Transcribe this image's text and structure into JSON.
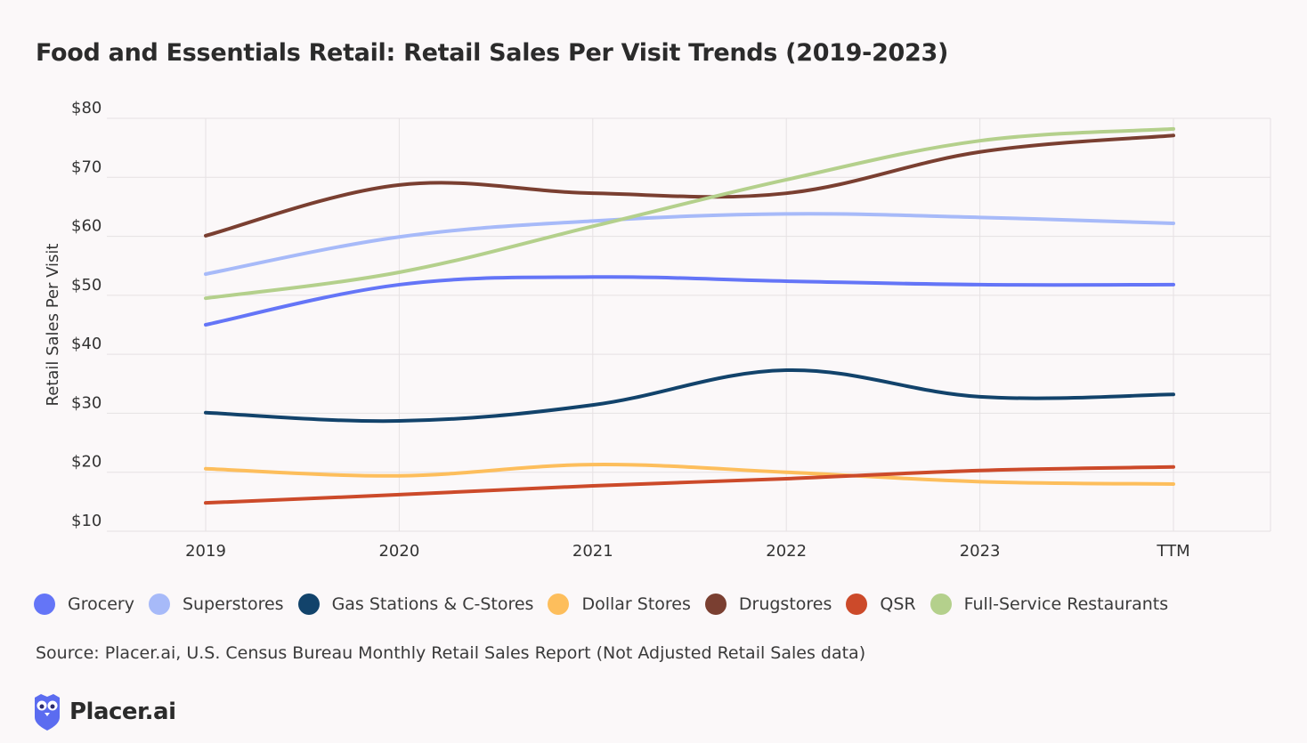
{
  "chart_data": {
    "type": "line",
    "title": "Food and Essentials Retail: Retail Sales Per Visit Trends (2019-2023)",
    "xlabel": "",
    "ylabel": "Retail Sales Per Visit",
    "categories": [
      "2019",
      "2020",
      "2021",
      "2022",
      "2023",
      "TTM"
    ],
    "ylim": [
      10,
      80
    ],
    "yticks": [
      10,
      20,
      30,
      40,
      50,
      60,
      70,
      80
    ],
    "ytick_labels": [
      "$10",
      "$20",
      "$30",
      "$40",
      "$50",
      "$60",
      "$70",
      "$80"
    ],
    "grid": true,
    "legend_position": "bottom",
    "series": [
      {
        "name": "Grocery",
        "color": "#6475f7",
        "values": [
          45.0,
          51.8,
          53.1,
          52.4,
          51.8,
          51.8
        ]
      },
      {
        "name": "Superstores",
        "color": "#a7baf9",
        "values": [
          53.6,
          59.9,
          62.6,
          63.8,
          63.2,
          62.2
        ]
      },
      {
        "name": "Gas Stations & C-Stores",
        "color": "#12436b",
        "values": [
          30.1,
          28.7,
          31.4,
          37.3,
          32.8,
          33.2
        ]
      },
      {
        "name": "Dollar Stores",
        "color": "#fdbe5c",
        "values": [
          20.6,
          19.4,
          21.3,
          20.0,
          18.4,
          18.0
        ]
      },
      {
        "name": "Drugstores",
        "color": "#7a3f31",
        "values": [
          60.1,
          68.7,
          67.3,
          67.3,
          74.3,
          77.1
        ]
      },
      {
        "name": "QSR",
        "color": "#cc4a2a",
        "values": [
          14.8,
          16.2,
          17.7,
          18.9,
          20.3,
          20.9
        ]
      },
      {
        "name": "Full-Service Restaurants",
        "color": "#b4d08c",
        "values": [
          49.5,
          53.9,
          61.7,
          69.6,
          76.2,
          78.2
        ]
      }
    ]
  },
  "source": "Source: Placer.ai, U.S. Census Bureau Monthly Retail Sales Report (Not Adjusted Retail Sales data)",
  "brand": {
    "name": "Placer.ai",
    "color": "#5b6cf0"
  }
}
